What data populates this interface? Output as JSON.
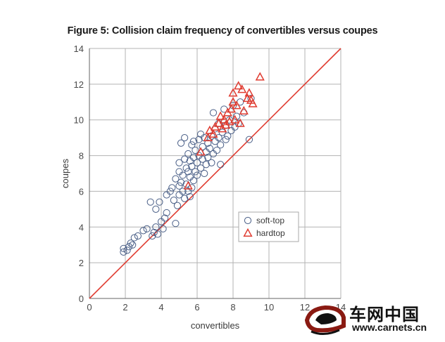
{
  "chart_data": {
    "type": "scatter",
    "title": "Figure 5: Collision claim frequency of convertibles versus coupes",
    "xlabel": "convertibles",
    "ylabel": "coupes",
    "xlim": [
      0,
      14
    ],
    "ylim": [
      0,
      14
    ],
    "xticks": [
      0,
      2,
      4,
      6,
      8,
      10,
      12,
      14
    ],
    "yticks": [
      0,
      2,
      4,
      6,
      8,
      10,
      12,
      14
    ],
    "grid": true,
    "reference_line": {
      "x": [
        0,
        14
      ],
      "y": [
        0,
        14
      ],
      "color": "#e03c31"
    },
    "legend": {
      "position": "right-middle"
    },
    "series": [
      {
        "name": "soft-top",
        "marker": "circle",
        "color": "#4a5f87",
        "points": [
          [
            1.9,
            2.6
          ],
          [
            1.9,
            2.8
          ],
          [
            2.1,
            2.7
          ],
          [
            2.2,
            2.9
          ],
          [
            2.3,
            3.1
          ],
          [
            2.4,
            3.0
          ],
          [
            2.5,
            3.4
          ],
          [
            2.7,
            3.5
          ],
          [
            3.0,
            3.8
          ],
          [
            3.2,
            3.9
          ],
          [
            3.4,
            5.4
          ],
          [
            3.5,
            3.5
          ],
          [
            3.6,
            3.7
          ],
          [
            3.7,
            4.0
          ],
          [
            3.7,
            5.0
          ],
          [
            3.8,
            3.6
          ],
          [
            3.9,
            5.4
          ],
          [
            4.0,
            4.3
          ],
          [
            4.1,
            3.9
          ],
          [
            4.2,
            4.5
          ],
          [
            4.3,
            4.8
          ],
          [
            4.3,
            5.8
          ],
          [
            4.5,
            6.0
          ],
          [
            4.6,
            6.2
          ],
          [
            4.7,
            5.5
          ],
          [
            4.8,
            4.2
          ],
          [
            4.8,
            6.7
          ],
          [
            4.9,
            5.2
          ],
          [
            5.0,
            5.8
          ],
          [
            5.0,
            6.3
          ],
          [
            5.0,
            7.1
          ],
          [
            5.0,
            7.6
          ],
          [
            5.1,
            6.5
          ],
          [
            5.1,
            8.7
          ],
          [
            5.2,
            6.0
          ],
          [
            5.2,
            6.9
          ],
          [
            5.3,
            5.6
          ],
          [
            5.3,
            7.8
          ],
          [
            5.3,
            9.0
          ],
          [
            5.4,
            6.4
          ],
          [
            5.4,
            7.3
          ],
          [
            5.5,
            6.0
          ],
          [
            5.5,
            7.1
          ],
          [
            5.5,
            8.1
          ],
          [
            5.6,
            5.7
          ],
          [
            5.6,
            6.8
          ],
          [
            5.6,
            7.7
          ],
          [
            5.7,
            6.2
          ],
          [
            5.7,
            7.4
          ],
          [
            5.7,
            8.6
          ],
          [
            5.8,
            6.6
          ],
          [
            5.8,
            7.9
          ],
          [
            5.8,
            8.8
          ],
          [
            5.9,
            7.1
          ],
          [
            5.9,
            8.3
          ],
          [
            6.0,
            6.9
          ],
          [
            6.0,
            7.6
          ],
          [
            6.1,
            8.0
          ],
          [
            6.1,
            8.9
          ],
          [
            6.2,
            7.3
          ],
          [
            6.2,
            9.2
          ],
          [
            6.3,
            7.8
          ],
          [
            6.3,
            8.5
          ],
          [
            6.4,
            7.0
          ],
          [
            6.4,
            9.0
          ],
          [
            6.5,
            7.5
          ],
          [
            6.5,
            8.2
          ],
          [
            6.6,
            7.9
          ],
          [
            6.6,
            8.7
          ],
          [
            6.7,
            8.4
          ],
          [
            6.8,
            7.6
          ],
          [
            6.8,
            9.1
          ],
          [
            6.9,
            8.1
          ],
          [
            6.9,
            10.4
          ],
          [
            7.0,
            8.8
          ],
          [
            7.0,
            9.5
          ],
          [
            7.1,
            8.3
          ],
          [
            7.2,
            9.0
          ],
          [
            7.2,
            9.8
          ],
          [
            7.3,
            7.5
          ],
          [
            7.3,
            8.6
          ],
          [
            7.4,
            9.3
          ],
          [
            7.5,
            10.6
          ],
          [
            7.6,
            8.9
          ],
          [
            7.6,
            9.7
          ],
          [
            7.7,
            9.1
          ],
          [
            7.8,
            10.0
          ],
          [
            7.9,
            9.4
          ],
          [
            8.0,
            10.8
          ],
          [
            8.1,
            9.6
          ],
          [
            8.2,
            10.2
          ],
          [
            8.3,
            9.8
          ],
          [
            8.4,
            11.0
          ],
          [
            8.6,
            10.4
          ],
          [
            8.9,
            8.9
          ],
          [
            9.0,
            11.2
          ]
        ]
      },
      {
        "name": "hardtop",
        "marker": "triangle",
        "color": "#e03c31",
        "points": [
          [
            5.5,
            6.3
          ],
          [
            6.2,
            8.2
          ],
          [
            6.6,
            9.0
          ],
          [
            6.7,
            9.4
          ],
          [
            6.9,
            9.2
          ],
          [
            7.0,
            9.6
          ],
          [
            7.2,
            9.8
          ],
          [
            7.3,
            10.2
          ],
          [
            7.4,
            9.5
          ],
          [
            7.5,
            10.0
          ],
          [
            7.6,
            9.7
          ],
          [
            7.7,
            10.4
          ],
          [
            7.8,
            9.9
          ],
          [
            7.9,
            10.6
          ],
          [
            8.0,
            11.0
          ],
          [
            8.0,
            11.5
          ],
          [
            8.1,
            10.0
          ],
          [
            8.2,
            10.8
          ],
          [
            8.3,
            11.9
          ],
          [
            8.4,
            9.8
          ],
          [
            8.5,
            11.7
          ],
          [
            8.6,
            10.5
          ],
          [
            8.8,
            11.2
          ],
          [
            8.9,
            11.5
          ],
          [
            9.0,
            11.1
          ],
          [
            9.1,
            10.9
          ],
          [
            9.5,
            12.4
          ]
        ]
      }
    ]
  },
  "colors": {
    "grid": "#b3b3b3",
    "axis_text": "#4a4a4a",
    "legend_border": "#aaaaaa"
  },
  "watermark": {
    "chinese_text": "车网中国",
    "url_text": "www.carnets.cn",
    "logo_icon": "car-logo-icon"
  }
}
